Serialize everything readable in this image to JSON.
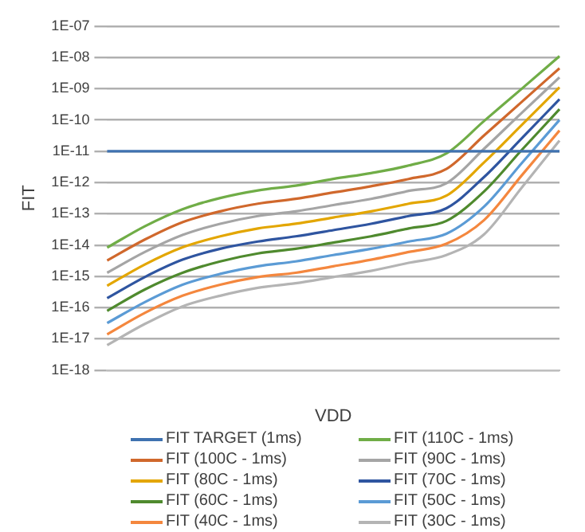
{
  "chart_data": {
    "type": "line",
    "xlabel": "VDD",
    "ylabel": "FIT",
    "log": "y",
    "grid": "y",
    "legend": "bottom",
    "marker": "none",
    "line_style": "solid",
    "categories": [
      null,
      null,
      null,
      null,
      null,
      null,
      null,
      null,
      null,
      null,
      null,
      null,
      null
    ],
    "ylim": [
      1e-18,
      1e-07
    ],
    "yticks": [
      {
        "value": 1e-18,
        "label": "1E-18"
      },
      {
        "value": 1e-17,
        "label": "1E-17"
      },
      {
        "value": 1e-16,
        "label": "1E-16"
      },
      {
        "value": 1e-15,
        "label": "1E-15"
      },
      {
        "value": 1e-14,
        "label": "1E-14"
      },
      {
        "value": 1e-13,
        "label": "1E-13"
      },
      {
        "value": 1e-12,
        "label": "1E-12"
      },
      {
        "value": 1e-11,
        "label": "1E-11"
      },
      {
        "value": 1e-10,
        "label": "1E-10"
      },
      {
        "value": 1e-09,
        "label": "1E-09"
      },
      {
        "value": 1e-08,
        "label": "1E-08"
      },
      {
        "value": 1e-07,
        "label": "1E-07"
      }
    ],
    "series": [
      {
        "name": "FIT TARGET (1ms)",
        "color": "#3f72b0",
        "values": [
          1e-11,
          1e-11,
          1e-11,
          1e-11,
          1e-11,
          1e-11,
          1e-11,
          1e-11,
          1e-11,
          1e-11,
          1e-11,
          1e-11,
          1e-11
        ]
      },
      {
        "name": "FIT (110C - 1ms)",
        "color": "#70ad47",
        "values": [
          8.3e-15,
          4e-14,
          1.4e-13,
          3.2e-13,
          5.6e-13,
          7.9e-13,
          1.3e-12,
          2e-12,
          3.5e-12,
          8.5e-12,
          9.3e-11,
          1e-09,
          1.1e-08
        ]
      },
      {
        "name": "FIT (100C - 1ms)",
        "color": "#d0682c",
        "values": [
          3.2e-15,
          1.5e-14,
          5.4e-14,
          1.2e-13,
          2.1e-13,
          3e-13,
          4.8e-13,
          7.6e-13,
          1.3e-12,
          2.7e-12,
          3.2e-11,
          3.8e-10,
          4.5e-09
        ]
      },
      {
        "name": "FIT (90C - 1ms)",
        "color": "#a5a5a5",
        "values": [
          1.3e-15,
          6e-15,
          2.1e-14,
          4.8e-14,
          8.5e-14,
          1.2e-13,
          1.9e-13,
          3e-13,
          5.4e-13,
          9.5e-13,
          1.2e-11,
          1.7e-10,
          2.3e-09
        ]
      },
      {
        "name": "FIT (80C - 1ms)",
        "color": "#e3a600",
        "values": [
          5e-16,
          2.4e-15,
          8.5e-15,
          1.9e-14,
          3.4e-14,
          4.8e-14,
          7.6e-14,
          1.2e-13,
          2.1e-13,
          3.8e-13,
          4.4e-12,
          6.9e-11,
          1.1e-09
        ]
      },
      {
        "name": "FIT (70C - 1ms)",
        "color": "#2f55a0",
        "values": [
          2e-16,
          9.5e-16,
          3.4e-15,
          7.6e-15,
          1.3e-14,
          1.9e-14,
          3e-14,
          4.8e-14,
          8.5e-14,
          1.5e-13,
          1.5e-12,
          2.6e-11,
          4.6e-10
        ]
      },
      {
        "name": "FIT (60C - 1ms)",
        "color": "#4f8a2e",
        "values": [
          7.9e-17,
          3.8e-16,
          1.3e-15,
          3e-15,
          5.4e-15,
          7.6e-15,
          1.2e-14,
          1.9e-14,
          3.4e-14,
          5.9e-14,
          5.2e-13,
          1.1e-11,
          2.2e-10
        ]
      },
      {
        "name": "FIT (50C - 1ms)",
        "color": "#5b9bd5",
        "values": [
          3.2e-17,
          1.5e-16,
          5.4e-16,
          1.2e-15,
          2.1e-15,
          3e-15,
          4.8e-15,
          7.6e-15,
          1.3e-14,
          2.3e-14,
          1.7e-13,
          4.2e-12,
          1e-10
        ]
      },
      {
        "name": "FIT (40C - 1ms)",
        "color": "#f4873e",
        "values": [
          1.4e-17,
          6.8e-17,
          2.4e-16,
          5.4e-16,
          9.5e-16,
          1.3e-15,
          2.1e-15,
          3.4e-15,
          6e-15,
          1.1e-14,
          6.3e-14,
          1.7e-12,
          4.6e-11
        ]
      },
      {
        "name": "FIT (30C - 1ms)",
        "color": "#b4b4b4",
        "values": [
          6.3e-18,
          3e-17,
          1.1e-16,
          2.4e-16,
          4.3e-16,
          6e-16,
          9.5e-16,
          1.5e-15,
          2.7e-15,
          4.8e-15,
          2.2e-14,
          6.9e-13,
          2.2e-11
        ]
      }
    ]
  }
}
